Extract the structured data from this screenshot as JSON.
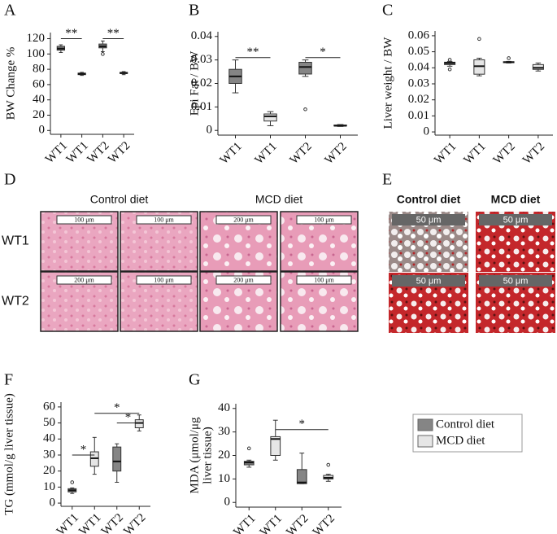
{
  "chart_data": [
    {
      "type": "box",
      "panel": "A",
      "ylabel": "BW Change %",
      "categories": [
        "WT1",
        "WT1",
        "WT2",
        "WT2"
      ],
      "colors": [
        "#858585",
        "#e6e6e6",
        "#858585",
        "#e6e6e6"
      ],
      "boxes": [
        {
          "min": 102,
          "q1": 105,
          "median": 107,
          "q3": 110,
          "max": 112
        },
        {
          "min": 72,
          "q1": 73,
          "median": 74,
          "q3": 75,
          "max": 76
        },
        {
          "min": 103,
          "q1": 108,
          "median": 110,
          "q3": 113,
          "max": 117,
          "outliers": [
            100
          ]
        },
        {
          "min": 73,
          "q1": 74.5,
          "median": 75,
          "q3": 76,
          "max": 77
        }
      ],
      "ylim": [
        -5,
        128
      ],
      "yticks": [
        0,
        20,
        40,
        60,
        80,
        100,
        120
      ],
      "significance": [
        {
          "label": "**",
          "from": 0,
          "to": 1,
          "y": 120
        },
        {
          "label": "**",
          "from": 2,
          "to": 3,
          "y": 120
        }
      ]
    },
    {
      "type": "box",
      "panel": "B",
      "ylabel": "Epi Fat / BW",
      "categories": [
        "WT1",
        "WT1",
        "WT2",
        "WT2"
      ],
      "colors": [
        "#858585",
        "#e6e6e6",
        "#858585",
        "#e6e6e6"
      ],
      "boxes": [
        {
          "min": 0.016,
          "q1": 0.02,
          "median": 0.023,
          "q3": 0.026,
          "max": 0.03
        },
        {
          "min": 0.002,
          "q1": 0.004,
          "median": 0.006,
          "q3": 0.007,
          "max": 0.008
        },
        {
          "min": 0.023,
          "q1": 0.024,
          "median": 0.027,
          "q3": 0.029,
          "max": 0.03,
          "outliers": [
            0.009
          ]
        },
        {
          "min": 0.0017,
          "q1": 0.0019,
          "median": 0.002,
          "q3": 0.0023,
          "max": 0.0025
        }
      ],
      "ylim": [
        -0.002,
        0.042
      ],
      "yticks": [
        0,
        0.01,
        0.02,
        0.03,
        0.04
      ],
      "significance": [
        {
          "label": "**",
          "from": 0,
          "to": 1,
          "y": 0.031
        },
        {
          "label": "*",
          "from": 2,
          "to": 3,
          "y": 0.031
        }
      ]
    },
    {
      "type": "box",
      "panel": "C",
      "ylabel": "Liver weight / BW",
      "categories": [
        "WT1",
        "WT1",
        "WT2",
        "WT2"
      ],
      "colors": [
        "#858585",
        "#e6e6e6",
        "#858585",
        "#e6e6e6"
      ],
      "boxes": [
        {
          "min": 0.041,
          "q1": 0.042,
          "median": 0.043,
          "q3": 0.0435,
          "max": 0.044,
          "outliers": [
            0.045,
            0.039
          ]
        },
        {
          "min": 0.035,
          "q1": 0.036,
          "median": 0.041,
          "q3": 0.045,
          "max": 0.046,
          "outliers": [
            0.058
          ]
        },
        {
          "min": 0.043,
          "q1": 0.0432,
          "median": 0.0435,
          "q3": 0.0438,
          "max": 0.044,
          "outliers": [
            0.046
          ]
        },
        {
          "min": 0.038,
          "q1": 0.039,
          "median": 0.04,
          "q3": 0.042,
          "max": 0.043
        }
      ],
      "ylim": [
        -0.002,
        0.063
      ],
      "yticks": [
        0,
        0.01,
        0.02,
        0.03,
        0.04,
        0.05,
        0.06
      ]
    },
    {
      "type": "box",
      "panel": "F",
      "ylabel": [
        "TG (mmol/g liver tissue)"
      ],
      "categories": [
        "WT1",
        "WT1",
        "WT2",
        "WT2"
      ],
      "colors": [
        "#858585",
        "#e6e6e6",
        "#858585",
        "#e6e6e6"
      ],
      "boxes": [
        {
          "min": 6,
          "q1": 7,
          "median": 8,
          "q3": 9,
          "max": 9.5,
          "outliers": [
            13
          ]
        },
        {
          "min": 18,
          "q1": 23,
          "median": 28,
          "q3": 32,
          "max": 41
        },
        {
          "min": 13,
          "q1": 20,
          "median": 26,
          "q3": 35,
          "max": 37
        },
        {
          "min": 45,
          "q1": 47,
          "median": 50,
          "q3": 52,
          "max": 55
        }
      ],
      "ylim": [
        -2,
        63
      ],
      "yticks": [
        0,
        10,
        20,
        30,
        40,
        50,
        60
      ],
      "significance": [
        {
          "label": "*",
          "from": 0,
          "to": 1,
          "y": 30
        },
        {
          "label": "*",
          "from": 1,
          "to": 3,
          "y": 56
        },
        {
          "label": "*",
          "from": 2,
          "to": 3,
          "y": 50
        }
      ]
    },
    {
      "type": "box",
      "panel": "G",
      "ylabel": [
        "MDA (μmol/μg",
        "liver tissue)"
      ],
      "categories": [
        "WT1",
        "WT1",
        "WT2",
        "WT2"
      ],
      "colors": [
        "#858585",
        "#e6e6e6",
        "#858585",
        "#e6e6e6"
      ],
      "boxes": [
        {
          "min": 15,
          "q1": 16,
          "median": 17,
          "q3": 17.5,
          "max": 18,
          "outliers": [
            23
          ]
        },
        {
          "min": 18,
          "q1": 20,
          "median": 27,
          "q3": 28,
          "max": 35
        },
        {
          "min": 8,
          "q1": 8,
          "median": 8.5,
          "q3": 14,
          "max": 21
        },
        {
          "min": 9,
          "q1": 10,
          "median": 10.5,
          "q3": 11.5,
          "max": 12,
          "outliers": [
            16
          ]
        }
      ],
      "ylim": [
        -2,
        42
      ],
      "yticks": [
        0,
        10,
        20,
        30,
        40
      ],
      "significance": [
        {
          "label": "*",
          "from": 1,
          "to": 3,
          "y": 31
        }
      ]
    }
  ],
  "legend": {
    "entries": [
      {
        "name": "Control diet",
        "color": "#858585"
      },
      {
        "name": "MCD diet",
        "color": "#e6e6e6"
      }
    ]
  },
  "histology": [
    {
      "panel": "D",
      "columns": [
        "Control diet",
        "MCD diet"
      ],
      "rows": [
        "WT1",
        "WT2"
      ],
      "scale_bars": [
        [
          "100 μm",
          "100 μm",
          "200 μm",
          "100 μm"
        ],
        [
          "200 μm",
          "100 μm",
          "200 μm",
          "100 μm"
        ]
      ]
    },
    {
      "panel": "E",
      "columns": [
        "Control diet",
        "MCD diet"
      ],
      "scale_bars": [
        [
          "50 μm",
          "50 μm"
        ],
        [
          "50 μm",
          "50 μm"
        ]
      ]
    }
  ]
}
